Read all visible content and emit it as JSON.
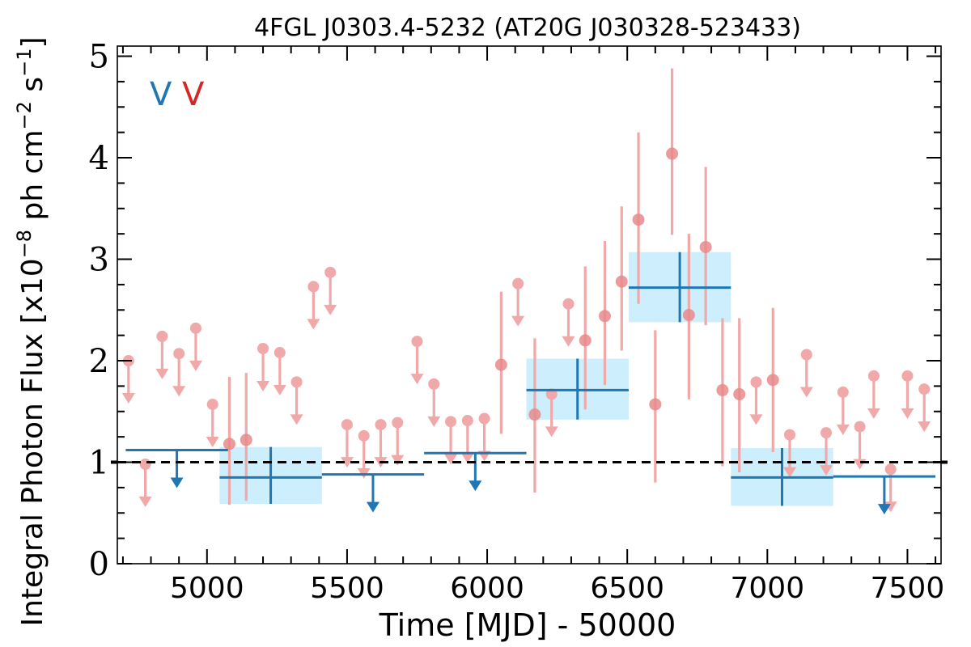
{
  "chart_data": {
    "type": "scatter",
    "title": "4FGL J0303.4-5232 (AT20G J030328-523433)",
    "xlabel": "Time [MJD] - 50000",
    "ylabel_main": "Integral Photon Flux [x10",
    "ylabel_exp1": "−8",
    "ylabel_mid": " ph cm",
    "ylabel_exp2": "−2",
    "ylabel_s": " s",
    "ylabel_exp3": "−1",
    "ylabel_end": "]",
    "xlim": [
      4680,
      7620
    ],
    "ylim": [
      0,
      5.1
    ],
    "x_ticks": [
      5000,
      5500,
      6000,
      6500,
      7000,
      7500
    ],
    "x_tick_labels": [
      "5000",
      "5500",
      "6000",
      "6500",
      "7000",
      "7500"
    ],
    "y_ticks": [
      0,
      1,
      2,
      3,
      4,
      5
    ],
    "y_tick_labels": [
      "0",
      "1",
      "2",
      "3",
      "4",
      "5"
    ],
    "legend_markers": [
      {
        "text": "V",
        "color": "#1f77b4"
      },
      {
        "text": "V",
        "color": "#d62728"
      }
    ],
    "reference_level": 1.0,
    "colors": {
      "long_bins": "#1f77b4",
      "long_band": "#cdeefc",
      "short_bins": "#e88a8a",
      "short_upper_limits": "#f0a8a8",
      "reference_line": "#000000"
    },
    "long_bins": [
      {
        "x_start": 4710,
        "x_end": 5075,
        "upper_limit": 1.12
      },
      {
        "x_start": 5045,
        "x_end": 5410,
        "value": 0.85,
        "err_low": 0.26,
        "err_high": 0.3
      },
      {
        "x_start": 5410,
        "x_end": 5775,
        "upper_limit": 0.88
      },
      {
        "x_start": 5775,
        "x_end": 6140,
        "upper_limit": 1.09
      },
      {
        "x_start": 6140,
        "x_end": 6505,
        "value": 1.71,
        "err_low": 0.29,
        "err_high": 0.31
      },
      {
        "x_start": 6505,
        "x_end": 6870,
        "value": 2.72,
        "err_low": 0.34,
        "err_high": 0.35
      },
      {
        "x_start": 6870,
        "x_end": 7235,
        "value": 0.85,
        "err_low": 0.28,
        "err_high": 0.29
      },
      {
        "x_start": 7235,
        "x_end": 7600,
        "upper_limit": 0.86
      }
    ],
    "short_upper_limits": [
      {
        "x": 4720,
        "y": 2.0
      },
      {
        "x": 4780,
        "y": 0.98
      },
      {
        "x": 4840,
        "y": 2.24
      },
      {
        "x": 4900,
        "y": 2.07
      },
      {
        "x": 4960,
        "y": 2.32
      },
      {
        "x": 5020,
        "y": 1.57
      },
      {
        "x": 5200,
        "y": 2.12
      },
      {
        "x": 5260,
        "y": 2.08
      },
      {
        "x": 5320,
        "y": 1.79
      },
      {
        "x": 5380,
        "y": 2.73
      },
      {
        "x": 5440,
        "y": 2.87
      },
      {
        "x": 5500,
        "y": 1.37
      },
      {
        "x": 5560,
        "y": 1.26
      },
      {
        "x": 5620,
        "y": 1.37
      },
      {
        "x": 5680,
        "y": 1.39
      },
      {
        "x": 5750,
        "y": 2.19
      },
      {
        "x": 5810,
        "y": 1.77
      },
      {
        "x": 5870,
        "y": 1.4
      },
      {
        "x": 5930,
        "y": 1.41
      },
      {
        "x": 5990,
        "y": 1.43
      },
      {
        "x": 6110,
        "y": 2.76
      },
      {
        "x": 6230,
        "y": 1.67
      },
      {
        "x": 6290,
        "y": 2.56
      },
      {
        "x": 6960,
        "y": 1.79
      },
      {
        "x": 7080,
        "y": 1.27
      },
      {
        "x": 7140,
        "y": 2.06
      },
      {
        "x": 7210,
        "y": 1.29
      },
      {
        "x": 7270,
        "y": 1.69
      },
      {
        "x": 7330,
        "y": 1.35
      },
      {
        "x": 7380,
        "y": 1.85
      },
      {
        "x": 7440,
        "y": 0.93
      },
      {
        "x": 7500,
        "y": 1.85
      },
      {
        "x": 7560,
        "y": 1.72
      }
    ],
    "short_detections": [
      {
        "x": 5080,
        "y": 1.18,
        "low": 0.58,
        "high": 1.84
      },
      {
        "x": 5140,
        "y": 1.22,
        "low": 0.62,
        "high": 1.88
      },
      {
        "x": 6050,
        "y": 1.96,
        "low": 1.28,
        "high": 2.68
      },
      {
        "x": 6170,
        "y": 1.47,
        "low": 0.7,
        "high": 2.22
      },
      {
        "x": 6350,
        "y": 2.2,
        "low": 1.52,
        "high": 2.93
      },
      {
        "x": 6420,
        "y": 2.44,
        "low": 1.76,
        "high": 3.18
      },
      {
        "x": 6480,
        "y": 2.78,
        "low": 2.1,
        "high": 3.52
      },
      {
        "x": 6540,
        "y": 3.39,
        "low": 2.56,
        "high": 4.25
      },
      {
        "x": 6600,
        "y": 1.57,
        "low": 0.8,
        "high": 2.3
      },
      {
        "x": 6660,
        "y": 4.04,
        "low": 3.24,
        "high": 4.88
      },
      {
        "x": 6720,
        "y": 2.45,
        "low": 1.62,
        "high": 3.25
      },
      {
        "x": 6780,
        "y": 3.12,
        "low": 2.35,
        "high": 3.91
      },
      {
        "x": 6840,
        "y": 1.71,
        "low": 0.96,
        "high": 2.42
      },
      {
        "x": 6900,
        "y": 1.67,
        "low": 0.9,
        "high": 2.42
      },
      {
        "x": 7020,
        "y": 1.81,
        "low": 1.1,
        "high": 2.52
      }
    ]
  }
}
